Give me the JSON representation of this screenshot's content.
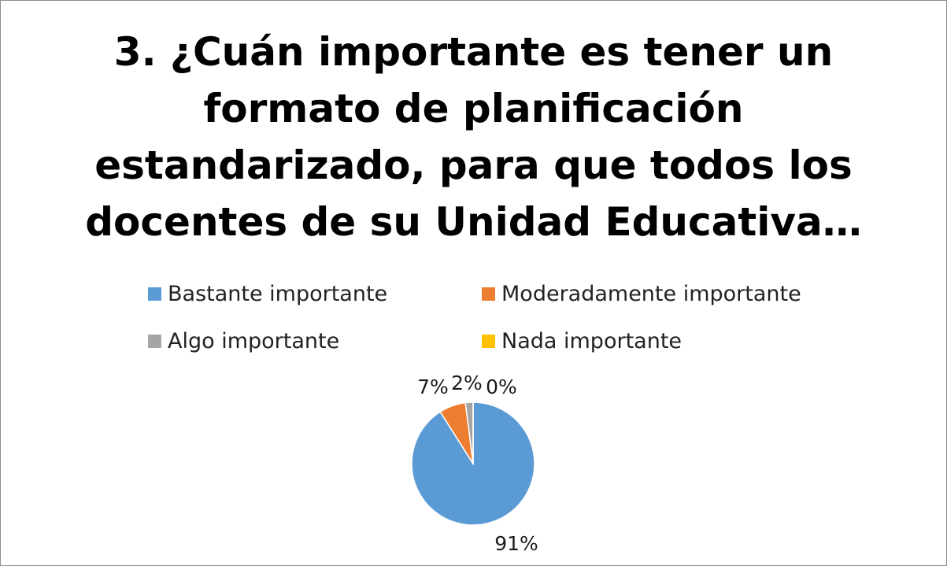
{
  "chart_data": {
    "type": "pie",
    "title_lines": [
      "3. ¿Cuán importante es tener un",
      "formato de planificación",
      "estandarizado, para que todos los",
      "docentes de su Unidad Educativa…"
    ],
    "categories": [
      "Bastante importante",
      "Moderadamente importante",
      "Algo importante",
      "Nada importante"
    ],
    "values": [
      91,
      7,
      2,
      0
    ],
    "labels": [
      "91%",
      "7%",
      "2%",
      "0%"
    ],
    "colors": [
      "#5b9bd5",
      "#ed7d31",
      "#a5a5a5",
      "#ffc000"
    ],
    "legend_position": "top"
  }
}
